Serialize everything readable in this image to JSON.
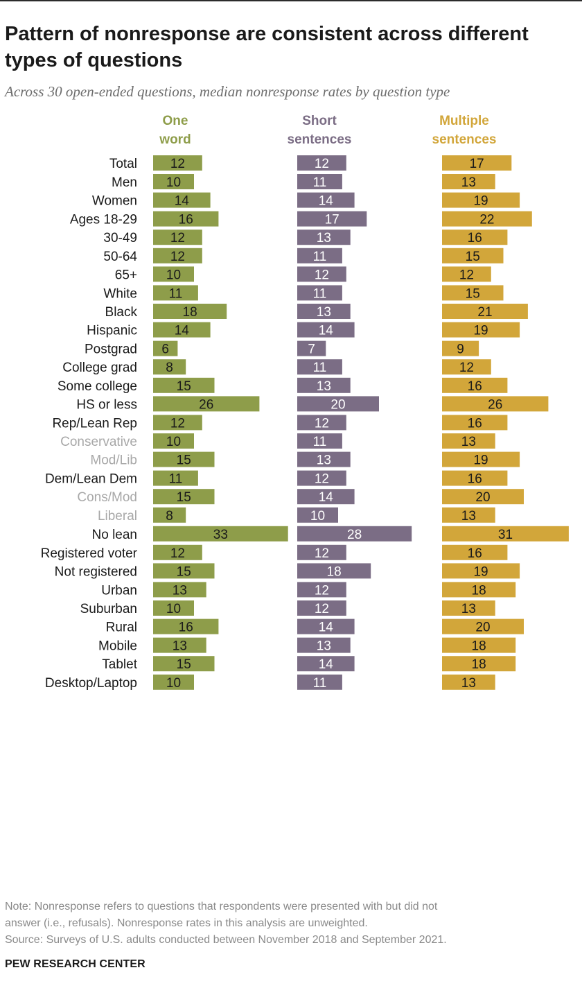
{
  "title": "Pattern of nonresponse are consistent across different types of questions",
  "subtitle": "Across 30 open-ended questions, median nonresponse rates by question type",
  "colors": {
    "one_word": "#8e9d4a",
    "short_sentences": "#7b6d85",
    "multiple_sentences": "#d2a63a",
    "label_main": "#1a1a1a",
    "label_sub": "#a8a8a8"
  },
  "chart_data": {
    "type": "bar",
    "orientation": "horizontal",
    "series": [
      {
        "name": "One word",
        "values": [
          12,
          10,
          14,
          16,
          12,
          12,
          10,
          11,
          18,
          14,
          6,
          8,
          15,
          26,
          12,
          10,
          15,
          11,
          15,
          8,
          33,
          12,
          15,
          13,
          10,
          16,
          13,
          15,
          10
        ]
      },
      {
        "name": "Short sentences",
        "values": [
          12,
          11,
          14,
          17,
          13,
          11,
          12,
          11,
          13,
          14,
          7,
          11,
          13,
          20,
          12,
          11,
          13,
          12,
          14,
          10,
          28,
          12,
          18,
          12,
          12,
          14,
          13,
          14,
          11
        ]
      },
      {
        "name": "Multiple sentences",
        "values": [
          17,
          13,
          19,
          22,
          16,
          15,
          12,
          15,
          21,
          19,
          9,
          12,
          16,
          26,
          16,
          13,
          19,
          16,
          20,
          13,
          31,
          16,
          19,
          18,
          13,
          20,
          18,
          18,
          13
        ]
      }
    ],
    "categories": [
      "Total",
      "Men",
      "Women",
      "Ages 18-29",
      "30-49",
      "50-64",
      "65+",
      "White",
      "Black",
      "Hispanic",
      "Postgrad",
      "College grad",
      "Some college",
      "HS or less",
      "Rep/Lean Rep",
      "Conservative",
      "Mod/Lib",
      "Dem/Lean Dem",
      "Cons/Mod",
      "Liberal",
      "No lean",
      "Registered voter",
      "Not registered",
      "Urban",
      "Suburban",
      "Rural",
      "Mobile",
      "Tablet",
      "Desktop/Laptop"
    ],
    "subcategories": [
      "Conservative",
      "Mod/Lib",
      "Cons/Mod",
      "Liberal"
    ],
    "groups": [
      [
        0
      ],
      [
        1,
        2
      ],
      [
        3,
        4,
        5,
        6
      ],
      [
        7,
        8,
        9
      ],
      [
        10,
        11,
        12,
        13
      ],
      [
        14,
        15,
        16
      ],
      [
        17,
        18,
        19
      ],
      [
        20
      ],
      [
        21,
        22
      ],
      [
        23,
        24,
        25
      ],
      [
        26,
        27,
        28
      ]
    ]
  },
  "note_lines": [
    "Note: Nonresponse refers to questions that respondents were presented with but did not",
    "answer (i.e., refusals). Nonresponse rates in this analysis are unweighted.",
    "Source: Surveys of U.S. adults conducted between November 2018 and September 2021."
  ],
  "brand": "PEW RESEARCH CENTER"
}
